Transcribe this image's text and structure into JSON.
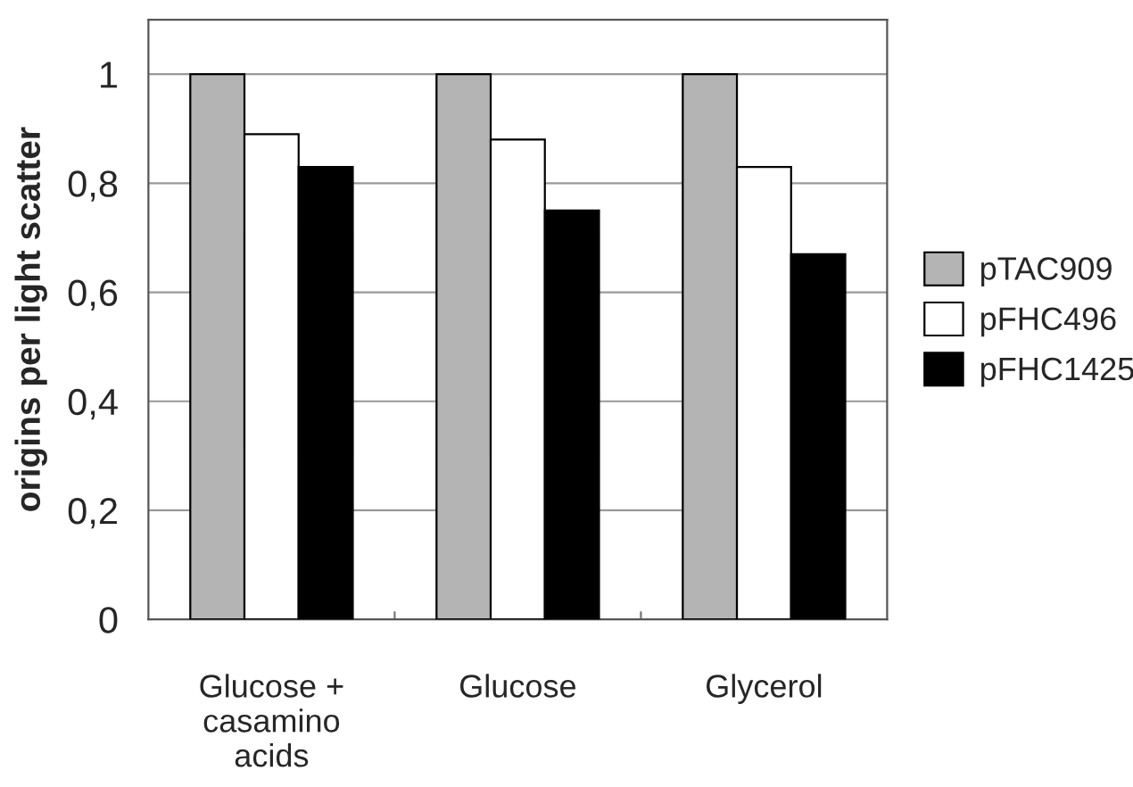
{
  "chart_data": {
    "type": "bar",
    "ylabel": "origins per light scatter",
    "categories": [
      "Glucose +\ncasamino\nacids",
      "Glucose",
      "Glycerol"
    ],
    "series": [
      {
        "name": "pTAC909",
        "color": "#b4b4b4",
        "values": [
          1,
          1,
          1
        ]
      },
      {
        "name": "pFHC496",
        "color": "#ffffff",
        "values": [
          0.89,
          0.88,
          0.83
        ]
      },
      {
        "name": "pFHC1425",
        "color": "#000000",
        "values": [
          0.83,
          0.75,
          0.67
        ]
      }
    ],
    "ylim": [
      0,
      1.1
    ],
    "yticks": [
      {
        "value": 0,
        "label": "0"
      },
      {
        "value": 0.2,
        "label": "0,2"
      },
      {
        "value": 0.4,
        "label": "0,4"
      },
      {
        "value": 0.6,
        "label": "0,6"
      },
      {
        "value": 0.8,
        "label": "0,8"
      },
      {
        "value": 1,
        "label": "1"
      }
    ],
    "grid": "y",
    "legend": "right"
  }
}
